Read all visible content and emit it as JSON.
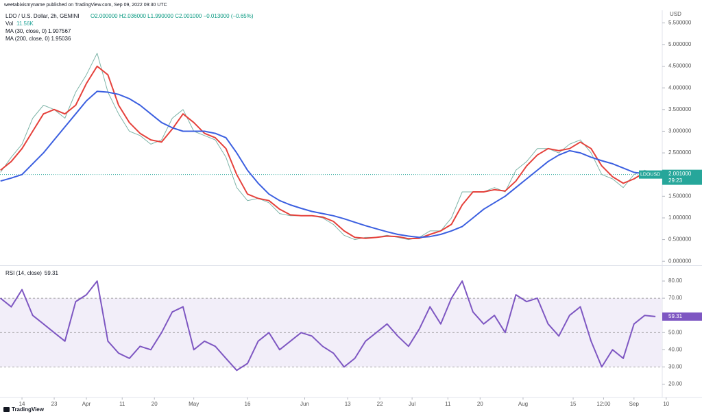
{
  "header": {
    "publisher": "weetabixismyname published on TradingView.com, Sep 09, 2022 09:30 UTC",
    "currency": "USD",
    "brand": "TradingView"
  },
  "chart_data": [
    {
      "type": "line",
      "title": "LDO / U.S. Dollar, 2h, GEMINI",
      "ohlc": "O2.000000 H2.036000 L1.990000 C2.001000 −0.013000 (−0.65%)",
      "volume_name": "Vol",
      "volume_label": "11.56K",
      "xlim": [
        7.86,
        192.7
      ],
      "x": [
        8,
        11,
        14,
        17,
        20,
        23,
        26,
        29,
        32,
        35,
        38,
        41,
        44,
        47,
        50,
        53,
        56,
        59,
        62,
        65,
        68,
        71,
        74,
        77,
        80,
        83,
        86,
        89,
        92,
        95,
        98,
        101,
        104,
        107,
        110,
        113,
        116,
        119,
        122,
        125,
        128,
        131,
        134,
        137,
        140,
        143,
        146,
        149,
        152,
        155,
        158,
        161,
        164,
        167,
        170,
        173,
        176,
        179,
        182,
        185,
        188,
        191
      ],
      "ylim": [
        -0.06,
        5.79
      ],
      "yticks": [
        {
          "value": 0,
          "label": "0.000000"
        },
        {
          "value": 0.5,
          "label": "0.500000"
        },
        {
          "value": 1,
          "label": "1.000000"
        },
        {
          "value": 1.5,
          "label": "1.500000"
        },
        {
          "value": 2,
          "label": "2.000000"
        },
        {
          "value": 2.5,
          "label": "2.500000"
        },
        {
          "value": 3,
          "label": "3.000000"
        },
        {
          "value": 3.5,
          "label": "3.500000"
        },
        {
          "value": 4,
          "label": "4.000000"
        },
        {
          "value": 4.5,
          "label": "4.500000"
        },
        {
          "value": 5,
          "label": "5.000000"
        },
        {
          "value": 5.5,
          "label": "5.500000"
        }
      ],
      "last_price": {
        "name": "LDOUSD",
        "value": 2.001,
        "label": "2.001000",
        "countdown": "29:23",
        "color": "#26a69a"
      },
      "series": [
        {
          "name": "LDOUSD",
          "color": "#7fb5a9",
          "values": [
            2.05,
            2.4,
            2.7,
            3.3,
            3.6,
            3.5,
            3.3,
            3.9,
            4.3,
            4.8,
            3.9,
            3.4,
            3.0,
            2.9,
            2.7,
            2.8,
            3.3,
            3.5,
            3.0,
            2.9,
            2.8,
            2.4,
            1.7,
            1.4,
            1.45,
            1.35,
            1.1,
            1.05,
            1.05,
            1.05,
            1.0,
            0.85,
            0.6,
            0.5,
            0.55,
            0.55,
            0.6,
            0.55,
            0.5,
            0.55,
            0.7,
            0.7,
            1.0,
            1.6,
            1.6,
            1.6,
            1.7,
            1.6,
            2.1,
            2.3,
            2.6,
            2.6,
            2.5,
            2.7,
            2.8,
            2.5,
            2.0,
            1.9,
            1.7,
            2.0,
            2.1,
            2.0
          ]
        },
        {
          "name": "MA (30, close, 0)",
          "last": 1.907567,
          "color": "#e5413b",
          "values": [
            2.1,
            2.3,
            2.6,
            3.0,
            3.4,
            3.5,
            3.4,
            3.6,
            4.1,
            4.5,
            4.3,
            3.6,
            3.2,
            2.95,
            2.8,
            2.75,
            3.05,
            3.4,
            3.2,
            2.95,
            2.85,
            2.6,
            2.0,
            1.55,
            1.45,
            1.4,
            1.2,
            1.07,
            1.05,
            1.05,
            1.02,
            0.92,
            0.7,
            0.55,
            0.53,
            0.55,
            0.58,
            0.57,
            0.52,
            0.53,
            0.62,
            0.7,
            0.85,
            1.3,
            1.6,
            1.6,
            1.65,
            1.62,
            1.85,
            2.2,
            2.45,
            2.6,
            2.55,
            2.6,
            2.75,
            2.6,
            2.2,
            1.95,
            1.8,
            1.9,
            2.05,
            2.05
          ]
        },
        {
          "name": "MA (200, close, 0)",
          "last": 1.95036,
          "color": "#3b5fe0",
          "values": [
            1.85,
            1.92,
            2.0,
            2.25,
            2.5,
            2.8,
            3.1,
            3.4,
            3.7,
            3.92,
            3.9,
            3.85,
            3.75,
            3.6,
            3.4,
            3.2,
            3.08,
            3.0,
            3.0,
            3.0,
            2.95,
            2.85,
            2.5,
            2.1,
            1.8,
            1.55,
            1.4,
            1.3,
            1.22,
            1.15,
            1.1,
            1.05,
            0.98,
            0.9,
            0.82,
            0.75,
            0.68,
            0.62,
            0.58,
            0.55,
            0.57,
            0.62,
            0.7,
            0.8,
            1.0,
            1.2,
            1.35,
            1.5,
            1.7,
            1.9,
            2.1,
            2.3,
            2.45,
            2.55,
            2.5,
            2.4,
            2.32,
            2.25,
            2.15,
            2.05,
            2.02,
            2.0
          ]
        }
      ]
    },
    {
      "type": "line",
      "title": "RSI (14, close)",
      "xlim": [
        7.86,
        192.7
      ],
      "x": [
        8,
        11,
        14,
        17,
        20,
        23,
        26,
        29,
        32,
        35,
        38,
        41,
        44,
        47,
        50,
        53,
        56,
        59,
        62,
        65,
        68,
        71,
        74,
        77,
        80,
        83,
        86,
        89,
        92,
        95,
        98,
        101,
        104,
        107,
        110,
        113,
        116,
        119,
        122,
        125,
        128,
        131,
        134,
        137,
        140,
        143,
        146,
        149,
        152,
        155,
        158,
        161,
        164,
        167,
        170,
        173,
        176,
        179,
        182,
        185,
        188,
        191
      ],
      "xticks": [
        {
          "value": 14,
          "label": "14"
        },
        {
          "value": 23,
          "label": "23"
        },
        {
          "value": 32,
          "label": "Apr"
        },
        {
          "value": 42,
          "label": "11"
        },
        {
          "value": 51,
          "label": "20"
        },
        {
          "value": 62,
          "label": "May"
        },
        {
          "value": 77,
          "label": "16"
        },
        {
          "value": 93,
          "label": "Jun"
        },
        {
          "value": 105,
          "label": "13"
        },
        {
          "value": 114,
          "label": "22"
        },
        {
          "value": 123,
          "label": "Jul"
        },
        {
          "value": 133,
          "label": "11"
        },
        {
          "value": 142,
          "label": "20"
        },
        {
          "value": 154,
          "label": "Aug"
        },
        {
          "value": 168,
          "label": "15"
        },
        {
          "value": 176.5,
          "label": "12:00"
        },
        {
          "value": 185,
          "label": "Sep"
        },
        {
          "value": 194,
          "label": "10"
        }
      ],
      "ylim": [
        13,
        88
      ],
      "yticks": [
        {
          "value": 20,
          "label": "20.00"
        },
        {
          "value": 30,
          "label": "30.00"
        },
        {
          "value": 40,
          "label": "40.00"
        },
        {
          "value": 50,
          "label": "50.00"
        },
        {
          "value": 60,
          "label": "60.00"
        },
        {
          "value": 70,
          "label": "70.00"
        },
        {
          "value": 80,
          "label": "80.00"
        }
      ],
      "levels": [
        30,
        50,
        70
      ],
      "series": [
        {
          "name": "RSI (14, close)",
          "last": 59.31,
          "color": "#7e57c2",
          "values": [
            70,
            65,
            75,
            60,
            55,
            50,
            45,
            68,
            72,
            80,
            45,
            38,
            35,
            42,
            40,
            50,
            62,
            65,
            40,
            45,
            42,
            35,
            28,
            32,
            45,
            50,
            40,
            45,
            50,
            48,
            42,
            38,
            30,
            35,
            45,
            50,
            55,
            48,
            42,
            52,
            65,
            55,
            70,
            80,
            62,
            55,
            60,
            50,
            72,
            68,
            70,
            55,
            48,
            60,
            65,
            45,
            30,
            40,
            35,
            55,
            60,
            59.31
          ]
        }
      ]
    }
  ]
}
